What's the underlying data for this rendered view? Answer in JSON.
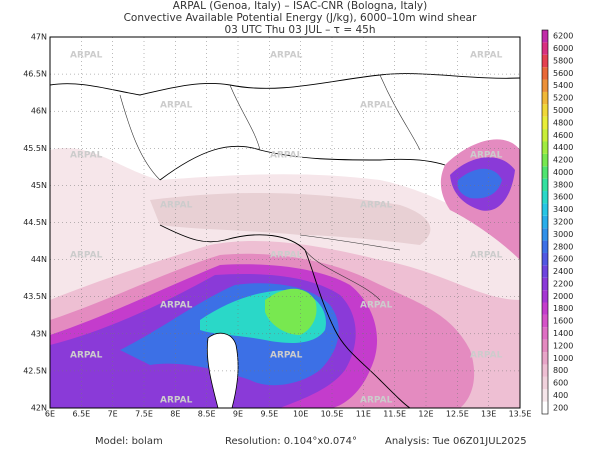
{
  "header": {
    "line1": "ARPAL (Genoa, Italy)  –  ISAC-CNR (Bologna, Italy)",
    "line2": "Convective Available Potential Energy (J/kg), 6000–10m wind shear",
    "line3": "03 UTC Thu 03 JUL  –  τ = 45h"
  },
  "map": {
    "lat_labels": [
      "42N",
      "42.5N",
      "43N",
      "43.5N",
      "44N",
      "44.5N",
      "45N",
      "45.5N",
      "46N",
      "46.5N",
      "47N"
    ],
    "lon_labels": [
      "6E",
      "6.5E",
      "7E",
      "7.5E",
      "8E",
      "8.5E",
      "9E",
      "9.5E",
      "10E",
      "10.5E",
      "11E",
      "11.5E",
      "12E",
      "12.5E",
      "13E",
      "13.5E"
    ],
    "watermark": "ARPAL"
  },
  "colorbar": {
    "levels": [
      200,
      400,
      600,
      800,
      1000,
      1200,
      1400,
      1600,
      1800,
      2000,
      2200,
      2400,
      2600,
      2800,
      3000,
      3200,
      3400,
      3600,
      3800,
      4000,
      4200,
      4400,
      4600,
      4800,
      5000,
      5200,
      5400,
      5600,
      5800,
      6000,
      6200
    ],
    "colors": [
      "#ffffff",
      "#f6e6ea",
      "#f0d2dc",
      "#eebfd3",
      "#e8a5c8",
      "#e48bc0",
      "#de6fc4",
      "#d552c8",
      "#c43ccc",
      "#a536d2",
      "#8a3ad8",
      "#6d44de",
      "#5058e2",
      "#3c70e6",
      "#3090e8",
      "#2aaeea",
      "#28c6e4",
      "#2ad8c8",
      "#34e0a0",
      "#50e470",
      "#78e850",
      "#a0ec40",
      "#c8ee38",
      "#e8ee38",
      "#f0d838",
      "#f0b838",
      "#ec9038",
      "#e86838",
      "#e44050",
      "#d83080",
      "#c02ca8"
    ]
  },
  "footer": {
    "model": "Model: bolam",
    "resolution": "Resolution: 0.104°x0.074°",
    "analysis": "Analysis: Tue 06Z01JUL2025"
  }
}
